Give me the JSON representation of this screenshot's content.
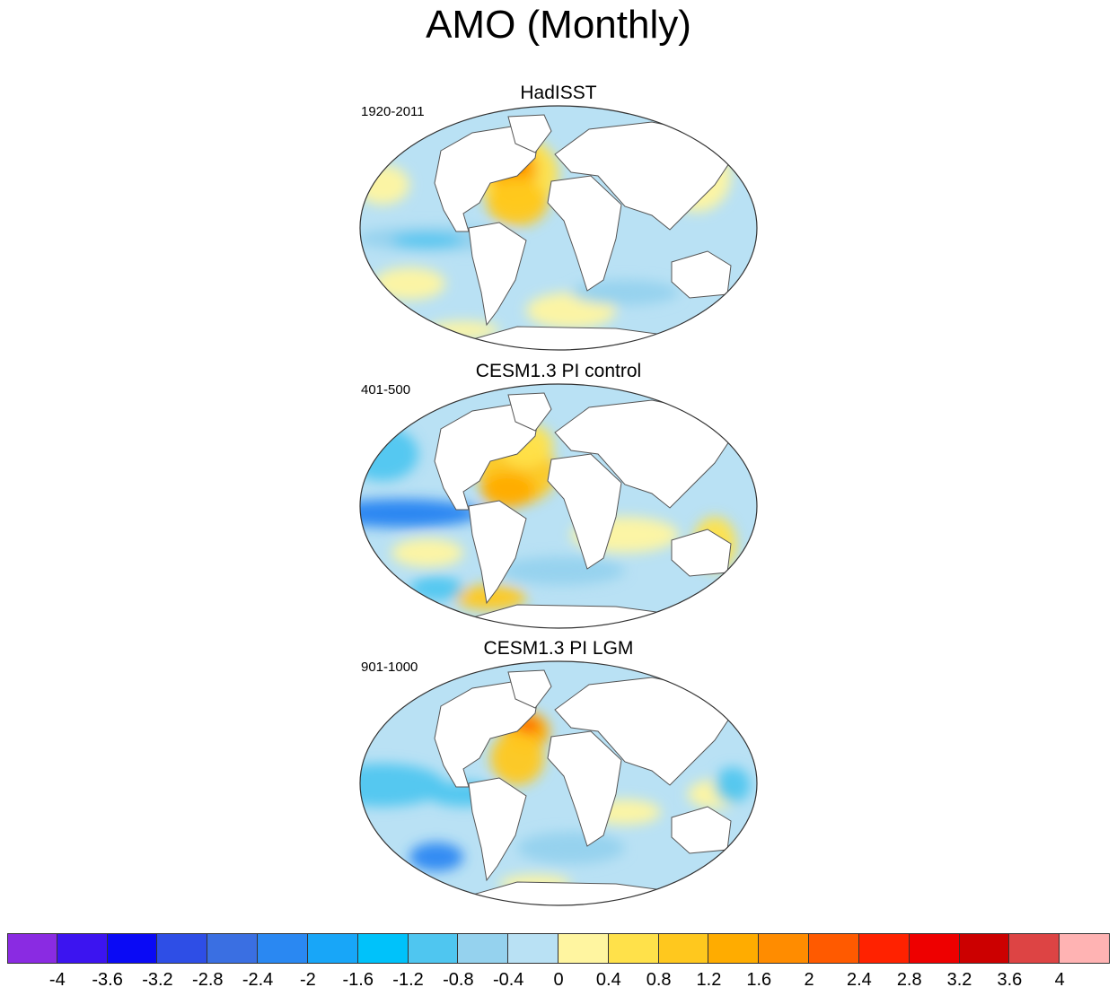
{
  "title": "AMO (Monthly)",
  "panels": [
    {
      "title": "HadISST",
      "period": "1920-2011"
    },
    {
      "title": "CESM1.3 PI control",
      "period": "401-500"
    },
    {
      "title": "CESM1.3 PI LGM",
      "period": "901-1000"
    }
  ],
  "colorbar": {
    "colors": [
      "#8a2be2",
      "#3c14f0",
      "#0a0af5",
      "#2e4ee6",
      "#3a6fe2",
      "#2a88f2",
      "#18a6f8",
      "#00c2fa",
      "#4fc6f0",
      "#95d2ee",
      "#b9e1f4",
      "#fff5a0",
      "#ffe14a",
      "#ffc81e",
      "#ffac00",
      "#ff8c00",
      "#ff5a00",
      "#ff2200",
      "#ee0000",
      "#cc0000",
      "#dd4444",
      "#ffb3b3"
    ],
    "labels": [
      "-4",
      "-3.6",
      "-3.2",
      "-2.8",
      "-2.4",
      "-2",
      "-1.6",
      "-1.2",
      "-0.8",
      "-0.4",
      "0",
      "0.4",
      "0.8",
      "1.2",
      "1.6",
      "2",
      "2.4",
      "2.8",
      "3.2",
      "3.6",
      "4"
    ]
  }
}
